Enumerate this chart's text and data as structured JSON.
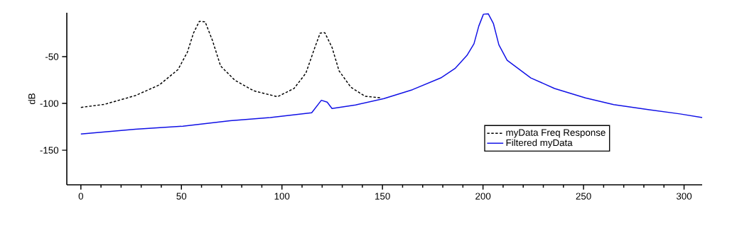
{
  "chart_data": {
    "type": "line",
    "ylabel": "dB",
    "xlim": [
      -7,
      309
    ],
    "ylim": [
      -187,
      -3
    ],
    "xticks": [
      0,
      50,
      100,
      150,
      200,
      250,
      300
    ],
    "yticks": [
      -50,
      -100,
      -150
    ],
    "legend": "bottom right",
    "marker": "none",
    "grid": false,
    "series": [
      {
        "name": "myData Freq Response",
        "color": "#000000",
        "line_style": "dashed",
        "x": [
          0,
          11.8,
          27.1,
          39,
          48.3,
          53,
          56,
          58.9,
          61.8,
          65.4,
          69.5,
          76.6,
          86,
          97.8,
          106,
          111.9,
          116,
          119,
          121.3,
          124.9,
          128.4,
          134.3,
          141.3,
          149.6
        ],
        "values": [
          -104.2,
          -100.9,
          -91.6,
          -80.2,
          -63.8,
          -45,
          -24.8,
          -12.2,
          -12.7,
          -32.4,
          -60,
          -75.2,
          -86.5,
          -92.8,
          -84,
          -67.6,
          -42.4,
          -24.8,
          -24.3,
          -40,
          -65.1,
          -82.7,
          -92.3,
          -94.1
        ]
      },
      {
        "name": "Filtered myData",
        "color": "#1010e6",
        "line_style": "solid",
        "x": [
          0,
          27.1,
          50.7,
          74.2,
          94.2,
          114.8,
          119.6,
          122.5,
          124.9,
          136.6,
          150.7,
          164.9,
          179,
          186.1,
          192,
          195.5,
          197.9,
          200.2,
          202.6,
          205.2,
          207.9,
          212,
          223.8,
          235.6,
          250.9,
          265,
          282.7,
          298,
          309
        ],
        "values": [
          -132.6,
          -127.6,
          -124.3,
          -118.5,
          -115,
          -110,
          -96.6,
          -98.6,
          -105.4,
          -101.6,
          -94.8,
          -85.3,
          -72.7,
          -62.6,
          -48.7,
          -36.2,
          -17.3,
          -4.6,
          -4.1,
          -14.7,
          -37.4,
          -53.8,
          -72.7,
          -84,
          -94.1,
          -101.2,
          -106.7,
          -111.2,
          -115
        ]
      }
    ]
  }
}
